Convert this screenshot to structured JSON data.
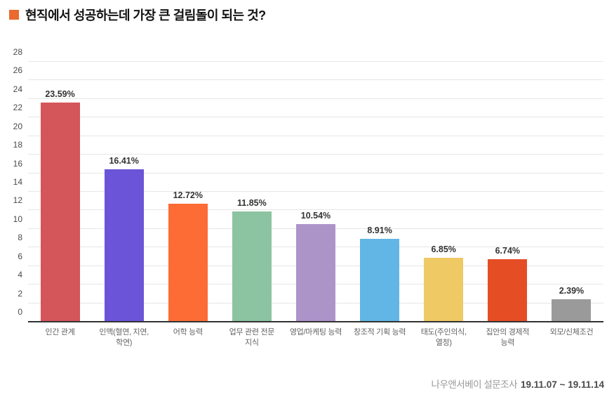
{
  "title": {
    "text": "현직에서 성공하는데 가장 큰 걸림돌이 되는 것?",
    "bullet_color": "#EA6A2F"
  },
  "footer": {
    "source": "나우앤서베이 설문조사",
    "period": "19.11.07 ~ 19.11.14"
  },
  "chart_data": {
    "type": "bar",
    "title": "현직에서 성공하는데 가장 큰 걸림돌이 되는 것?",
    "categories": [
      "인간 관계",
      "인맥(혈연, 지연,\n학연)",
      "어학 능력",
      "업무 관련 전문\n지식",
      "영업/마케팅 능력",
      "창조적 기획 능력",
      "태도(주인의식,\n열정)",
      "집안의 경제적\n능력",
      "외모/신체조건"
    ],
    "values": [
      23.59,
      16.41,
      12.72,
      11.85,
      10.54,
      8.91,
      6.85,
      6.74,
      2.39
    ],
    "labels": [
      "23.59%",
      "16.41%",
      "12.72%",
      "11.85%",
      "10.54%",
      "8.91%",
      "6.85%",
      "6.74%",
      "2.39%"
    ],
    "bar_colors": [
      "#D4555A",
      "#6B54D8",
      "#FC6C34",
      "#8CC3A1",
      "#AC94C9",
      "#61B6E5",
      "#EFC964",
      "#E54D25",
      "#9A9A9A"
    ],
    "xlabel": "",
    "ylabel": "",
    "ylim": [
      0,
      28
    ],
    "yticks": [
      0,
      2,
      4,
      6,
      8,
      10,
      12,
      14,
      16,
      18,
      20,
      22,
      24,
      26,
      28
    ],
    "grid": true,
    "grid_color": "#E6E6E6",
    "axis_color": "#333333",
    "legend": "none"
  }
}
